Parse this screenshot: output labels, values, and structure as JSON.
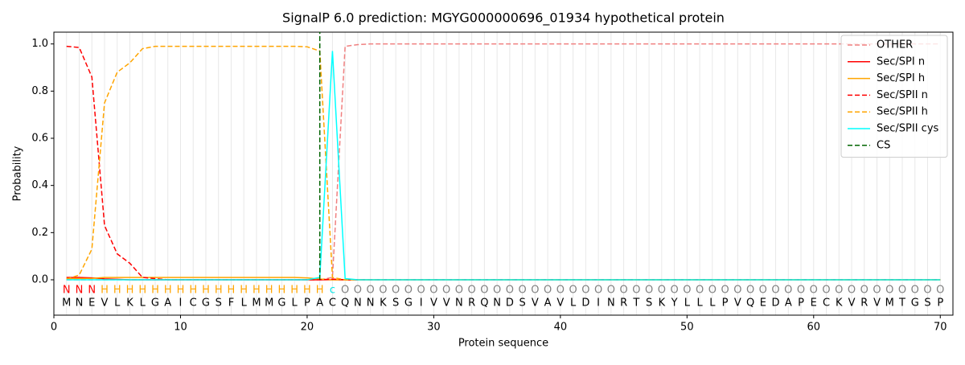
{
  "chart_data": {
    "type": "line",
    "title": "SignalP 6.0 prediction: MGYG000000696_01934 hypothetical protein",
    "x_label": "Protein sequence",
    "y_label": "Probability",
    "xlim": [
      0,
      71
    ],
    "ylim": [
      -0.15,
      1.05
    ],
    "xticks": [
      0,
      10,
      20,
      30,
      40,
      50,
      60,
      70
    ],
    "yticks": [
      {
        "value": 0,
        "label": "0.0"
      },
      {
        "value": 0.2,
        "label": "0.2"
      },
      {
        "value": 0.4,
        "label": "0.4"
      },
      {
        "value": 0.6,
        "label": "0.6"
      },
      {
        "value": 0.8,
        "label": "0.8"
      },
      {
        "value": 1,
        "label": "1.0"
      }
    ],
    "grid": true,
    "legend_position": "upper-right",
    "x": [
      1,
      2,
      3,
      4,
      5,
      6,
      7,
      8,
      9,
      10,
      11,
      12,
      13,
      14,
      15,
      16,
      17,
      18,
      19,
      20,
      21,
      22,
      23,
      24,
      25,
      26,
      27,
      28,
      29,
      30,
      31,
      32,
      33,
      34,
      35,
      36,
      37,
      38,
      39,
      40,
      41,
      42,
      43,
      44,
      45,
      46,
      47,
      48,
      49,
      50,
      51,
      52,
      53,
      54,
      55,
      56,
      57,
      58,
      59,
      60,
      61,
      62,
      63,
      64,
      65,
      66,
      67,
      68,
      69,
      70
    ],
    "sequence": [
      "M",
      "N",
      "E",
      "V",
      "L",
      "K",
      "L",
      "G",
      "A",
      "I",
      "C",
      "G",
      "S",
      "F",
      "L",
      "M",
      "M",
      "G",
      "L",
      "P",
      "A",
      "C",
      "Q",
      "N",
      "N",
      "K",
      "S",
      "G",
      "I",
      "V",
      "V",
      "N",
      "R",
      "Q",
      "N",
      "D",
      "S",
      "V",
      "A",
      "V",
      "L",
      "D",
      "I",
      "N",
      "R",
      "T",
      "S",
      "K",
      "Y",
      "L",
      "L",
      "L",
      "P",
      "V",
      "Q",
      "E",
      "D",
      "A",
      "P",
      "E",
      "C",
      "K",
      "V",
      "R",
      "V",
      "M",
      "T",
      "G",
      "S",
      "P"
    ],
    "region_labels": [
      "N",
      "N",
      "N",
      "H",
      "H",
      "H",
      "H",
      "H",
      "H",
      "H",
      "H",
      "H",
      "H",
      "H",
      "H",
      "H",
      "H",
      "H",
      "H",
      "H",
      "H",
      "c",
      "O",
      "O",
      "O",
      "O",
      "O",
      "O",
      "O",
      "O",
      "O",
      "O",
      "O",
      "O",
      "O",
      "O",
      "O",
      "O",
      "O",
      "O",
      "O",
      "O",
      "O",
      "O",
      "O",
      "O",
      "O",
      "O",
      "O",
      "O",
      "O",
      "O",
      "O",
      "O",
      "O",
      "O",
      "O",
      "O",
      "O",
      "O",
      "O",
      "O",
      "O",
      "O",
      "O",
      "O",
      "O",
      "O",
      "O",
      "O"
    ],
    "region_colors": {
      "N": "#ff0000",
      "H": "#ffa500",
      "c": "#00e5e5",
      "O": "#808080"
    },
    "series": [
      {
        "name": "OTHER",
        "color": "#f08080",
        "linestyle": "dashed",
        "values": [
          0,
          0,
          0,
          0,
          0,
          0,
          0,
          0,
          0,
          0,
          0,
          0,
          0,
          0,
          0,
          0,
          0,
          0,
          0,
          0,
          0,
          0.01,
          0.99,
          0.997,
          1,
          1,
          1,
          1,
          1,
          1,
          1,
          1,
          1,
          1,
          1,
          1,
          1,
          1,
          1,
          1,
          1,
          1,
          1,
          1,
          1,
          1,
          1,
          1,
          1,
          1,
          1,
          1,
          1,
          1,
          1,
          1,
          1,
          1,
          1,
          1,
          1,
          1,
          1,
          1,
          1,
          1,
          1,
          1,
          1,
          1
        ]
      },
      {
        "name": "Sec/SPI n",
        "color": "#ff0000",
        "linestyle": "solid",
        "values": [
          0.01,
          0.01,
          0.008,
          0.004,
          0.002,
          0,
          0,
          0,
          0,
          0,
          0,
          0,
          0,
          0,
          0,
          0,
          0,
          0,
          0,
          0,
          0,
          0,
          0,
          0,
          0,
          0,
          0,
          0,
          0,
          0,
          0,
          0,
          0,
          0,
          0,
          0,
          0,
          0,
          0,
          0,
          0,
          0,
          0,
          0,
          0,
          0,
          0,
          0,
          0,
          0,
          0,
          0,
          0,
          0,
          0,
          0,
          0,
          0,
          0,
          0,
          0,
          0,
          0,
          0,
          0,
          0,
          0,
          0,
          0,
          0
        ]
      },
      {
        "name": "Sec/SPI h",
        "color": "#ffa500",
        "linestyle": "solid",
        "values": [
          0.005,
          0.005,
          0.006,
          0.01,
          0.01,
          0.01,
          0.01,
          0.01,
          0.01,
          0.01,
          0.01,
          0.01,
          0.01,
          0.01,
          0.01,
          0.01,
          0.01,
          0.01,
          0.01,
          0.008,
          0.003,
          0,
          0,
          0,
          0,
          0,
          0,
          0,
          0,
          0,
          0,
          0,
          0,
          0,
          0,
          0,
          0,
          0,
          0,
          0,
          0,
          0,
          0,
          0,
          0,
          0,
          0,
          0,
          0,
          0,
          0,
          0,
          0,
          0,
          0,
          0,
          0,
          0,
          0,
          0,
          0,
          0,
          0,
          0,
          0,
          0,
          0,
          0,
          0,
          0
        ]
      },
      {
        "name": "Sec/SPII n",
        "color": "#ff0000",
        "linestyle": "dashed",
        "values": [
          0.99,
          0.985,
          0.86,
          0.23,
          0.11,
          0.07,
          0.01,
          0.005,
          0,
          0,
          0,
          0,
          0,
          0,
          0,
          0,
          0,
          0,
          0,
          0,
          0,
          0.003,
          0,
          0,
          0,
          0,
          0,
          0,
          0,
          0,
          0,
          0,
          0,
          0,
          0,
          0,
          0,
          0,
          0,
          0,
          0,
          0,
          0,
          0,
          0,
          0,
          0,
          0,
          0,
          0,
          0,
          0,
          0,
          0,
          0,
          0,
          0,
          0,
          0,
          0,
          0,
          0,
          0,
          0,
          0,
          0,
          0,
          0,
          0,
          0
        ]
      },
      {
        "name": "Sec/SPII h",
        "color": "#ffa500",
        "linestyle": "dashed",
        "values": [
          0.003,
          0.02,
          0.13,
          0.75,
          0.88,
          0.92,
          0.98,
          0.99,
          0.99,
          0.99,
          0.99,
          0.99,
          0.99,
          0.99,
          0.99,
          0.99,
          0.99,
          0.99,
          0.99,
          0.988,
          0.97,
          0.01,
          0,
          0,
          0,
          0,
          0,
          0,
          0,
          0,
          0,
          0,
          0,
          0,
          0,
          0,
          0,
          0,
          0,
          0,
          0,
          0,
          0,
          0,
          0,
          0,
          0,
          0,
          0,
          0,
          0,
          0,
          0,
          0,
          0,
          0,
          0,
          0,
          0,
          0,
          0,
          0,
          0,
          0,
          0,
          0,
          0,
          0,
          0,
          0
        ]
      },
      {
        "name": "Sec/SPII cys",
        "color": "#00ffff",
        "linestyle": "solid",
        "values": [
          0,
          0,
          0,
          0,
          0,
          0,
          0,
          0,
          0,
          0,
          0,
          0,
          0,
          0,
          0,
          0,
          0,
          0,
          0,
          0,
          0.01,
          0.97,
          0.005,
          0,
          0,
          0,
          0,
          0,
          0,
          0,
          0,
          0,
          0,
          0,
          0,
          0,
          0,
          0,
          0,
          0,
          0,
          0,
          0,
          0,
          0,
          0,
          0,
          0,
          0,
          0,
          0,
          0,
          0,
          0,
          0,
          0,
          0,
          0,
          0,
          0,
          0,
          0,
          0,
          0,
          0,
          0,
          0,
          0,
          0,
          0
        ]
      }
    ],
    "cleavage_site": {
      "name": "CS",
      "color": "#006400",
      "linestyle": "dashed",
      "position": 21
    }
  }
}
